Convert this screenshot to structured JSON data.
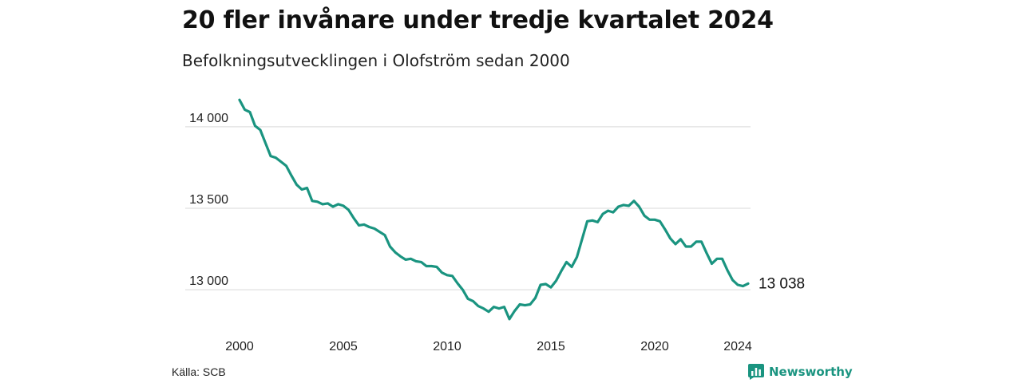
{
  "header": {
    "title": "20 fler invånare under tredje kvartalet 2024",
    "subtitle": "Befolkningsutvecklingen i Olofström sedan 2000"
  },
  "footer": {
    "source": "Källa: SCB",
    "brand": "Newsworthy"
  },
  "colors": {
    "line": "#1a9480",
    "grid": "#d9d9d9",
    "brand": "#1a9480"
  },
  "chart_data": {
    "type": "line",
    "title": "20 fler invånare under tredje kvartalet 2024",
    "subtitle": "Befolkningsutvecklingen i Olofström sedan 2000",
    "xlabel": "",
    "ylabel": "",
    "x_ticks": [
      "2000",
      "2005",
      "2010",
      "2015",
      "2020",
      "2024"
    ],
    "x_tick_values": [
      2000,
      2005,
      2010,
      2015,
      2020,
      2024
    ],
    "y_ticks": [
      "13 000",
      "13 500",
      "14 000"
    ],
    "y_tick_values": [
      13000,
      13500,
      14000
    ],
    "xlim": [
      2000,
      2024.5
    ],
    "ylim": [
      12800,
      14200
    ],
    "grid": true,
    "end_label": "13 038",
    "series": [
      {
        "x": [
          2000.0,
          2000.25,
          2000.5,
          2000.75,
          2001.0,
          2001.25,
          2001.5,
          2001.75,
          2002.0,
          2002.25,
          2002.5,
          2002.75,
          2003.0,
          2003.25,
          2003.5,
          2003.75,
          2004.0,
          2004.25,
          2004.5,
          2004.75,
          2005.0,
          2005.25,
          2005.5,
          2005.75,
          2006.0,
          2006.25,
          2006.5,
          2006.75,
          2007.0,
          2007.25,
          2007.5,
          2007.75,
          2008.0,
          2008.25,
          2008.5,
          2008.75,
          2009.0,
          2009.25,
          2009.5,
          2009.75,
          2010.0,
          2010.25,
          2010.5,
          2010.75,
          2011.0,
          2011.25,
          2011.5,
          2011.75,
          2012.0,
          2012.25,
          2012.5,
          2012.75,
          2013.0,
          2013.25,
          2013.5,
          2013.75,
          2014.0,
          2014.25,
          2014.5,
          2014.75,
          2015.0,
          2015.25,
          2015.5,
          2015.75,
          2016.0,
          2016.25,
          2016.5,
          2016.75,
          2017.0,
          2017.25,
          2017.5,
          2017.75,
          2018.0,
          2018.25,
          2018.5,
          2018.75,
          2019.0,
          2019.25,
          2019.5,
          2019.75,
          2020.0,
          2020.25,
          2020.5,
          2020.75,
          2021.0,
          2021.25,
          2021.5,
          2021.75,
          2022.0,
          2022.25,
          2022.5,
          2022.75,
          2023.0,
          2023.25,
          2023.5,
          2023.75,
          2024.0,
          2024.25,
          2024.5
        ],
        "values": [
          14165,
          14105,
          14090,
          14005,
          13980,
          13900,
          13820,
          13810,
          13785,
          13760,
          13700,
          13645,
          13615,
          13625,
          13545,
          13540,
          13525,
          13530,
          13510,
          13525,
          13515,
          13490,
          13440,
          13395,
          13400,
          13385,
          13375,
          13355,
          13335,
          13265,
          13230,
          13205,
          13185,
          13190,
          13175,
          13170,
          13145,
          13145,
          13140,
          13105,
          13090,
          13085,
          13040,
          13000,
          12945,
          12930,
          12900,
          12885,
          12865,
          12895,
          12885,
          12895,
          12820,
          12870,
          12910,
          12905,
          12910,
          12950,
          13030,
          13035,
          13015,
          13055,
          13115,
          13170,
          13140,
          13200,
          13310,
          13420,
          13425,
          13415,
          13465,
          13485,
          13475,
          13510,
          13520,
          13515,
          13545,
          13510,
          13455,
          13430,
          13430,
          13420,
          13370,
          13315,
          13280,
          13310,
          13265,
          13265,
          13295,
          13295,
          13225,
          13160,
          13190,
          13190,
          13120,
          13060,
          13030,
          13022,
          13038
        ]
      }
    ]
  }
}
